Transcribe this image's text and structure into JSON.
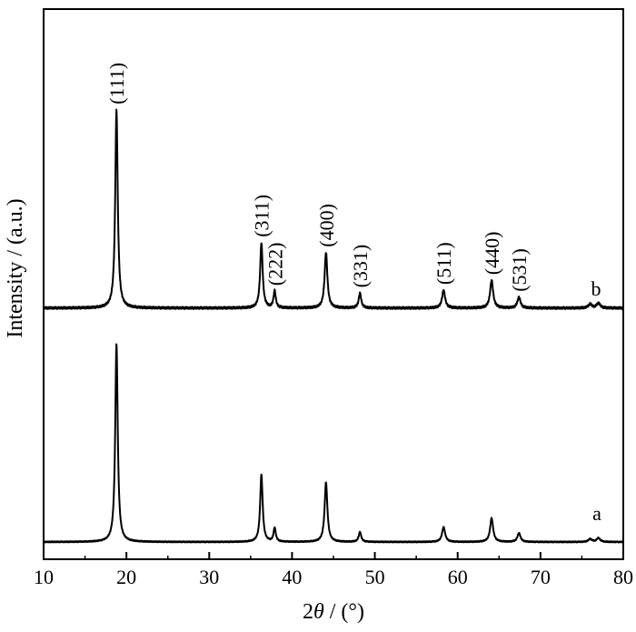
{
  "chart_data": {
    "type": "line",
    "xlabel_prefix": "2",
    "xlabel_symbol": "θ",
    "xlabel_suffix": " / (°)",
    "ylabel": "Intensity / (a.u.)",
    "xlim": [
      10,
      80
    ],
    "xticks": [
      10,
      20,
      30,
      40,
      50,
      60,
      70,
      80
    ],
    "yticks_shown": false,
    "grid": false,
    "legend": "none",
    "series": [
      {
        "name": "a",
        "baseline": 0.0,
        "peaks": [
          {
            "x": 18.8,
            "y": 1.0,
            "w": 0.18
          },
          {
            "x": 36.3,
            "y": 0.34,
            "w": 0.18
          },
          {
            "x": 37.9,
            "y": 0.07,
            "w": 0.16
          },
          {
            "x": 44.1,
            "y": 0.3,
            "w": 0.2
          },
          {
            "x": 48.2,
            "y": 0.05,
            "w": 0.18
          },
          {
            "x": 58.3,
            "y": 0.075,
            "w": 0.22
          },
          {
            "x": 64.1,
            "y": 0.12,
            "w": 0.22
          },
          {
            "x": 67.4,
            "y": 0.045,
            "w": 0.22
          },
          {
            "x": 76.0,
            "y": 0.015,
            "w": 0.25
          },
          {
            "x": 77.0,
            "y": 0.02,
            "w": 0.25
          }
        ]
      },
      {
        "name": "b",
        "baseline": 1.18,
        "peaks": [
          {
            "x": 18.8,
            "y": 1.0,
            "w": 0.18
          },
          {
            "x": 36.3,
            "y": 0.33,
            "w": 0.18
          },
          {
            "x": 37.9,
            "y": 0.085,
            "w": 0.16
          },
          {
            "x": 44.1,
            "y": 0.28,
            "w": 0.2
          },
          {
            "x": 48.2,
            "y": 0.075,
            "w": 0.18
          },
          {
            "x": 58.3,
            "y": 0.09,
            "w": 0.22
          },
          {
            "x": 64.1,
            "y": 0.14,
            "w": 0.22
          },
          {
            "x": 67.4,
            "y": 0.055,
            "w": 0.22
          },
          {
            "x": 76.0,
            "y": 0.02,
            "w": 0.25
          },
          {
            "x": 77.0,
            "y": 0.025,
            "w": 0.25
          }
        ]
      }
    ],
    "annotations": [
      {
        "text": "(111)",
        "x": 18.8
      },
      {
        "text": "(311)",
        "x": 36.3
      },
      {
        "text": "(222)",
        "x": 37.9
      },
      {
        "text": "(400)",
        "x": 44.1
      },
      {
        "text": "(331)",
        "x": 48.2
      },
      {
        "text": "(511)",
        "x": 58.3
      },
      {
        "text": "(440)",
        "x": 64.1
      },
      {
        "text": "(531)",
        "x": 67.4
      }
    ]
  }
}
